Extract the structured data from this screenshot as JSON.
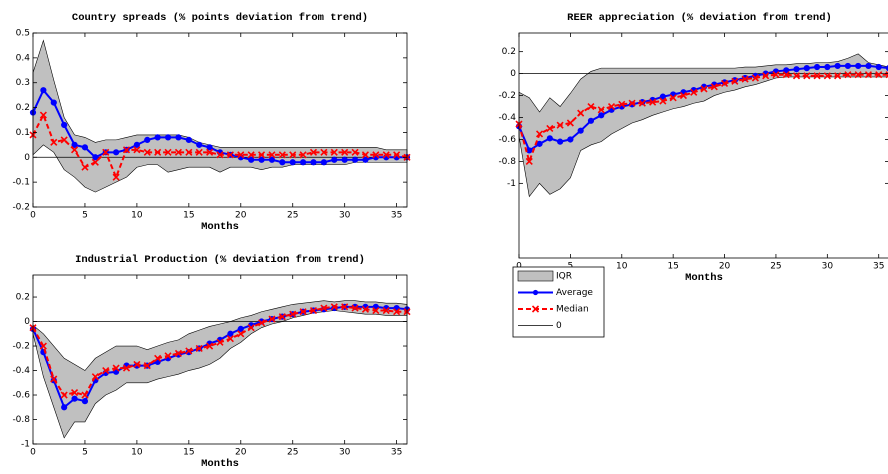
{
  "legend": {
    "entries": [
      {
        "label": "IQR",
        "color": "#c0c0c0",
        "kind": "patch"
      },
      {
        "label": "Average",
        "color": "#0000ff",
        "kind": "line",
        "marker": "circle"
      },
      {
        "label": "Median",
        "color": "#ff0000",
        "kind": "line",
        "marker": "x",
        "dash": "5,3"
      },
      {
        "label": "0",
        "color": "#000000",
        "kind": "line"
      }
    ]
  },
  "chart_data": [
    {
      "type": "line",
      "title": "Country spreads (% points deviation from trend)",
      "x_label": "Months",
      "x": [
        0,
        1,
        2,
        3,
        4,
        5,
        6,
        7,
        8,
        9,
        10,
        11,
        12,
        13,
        14,
        15,
        16,
        17,
        18,
        19,
        20,
        21,
        22,
        23,
        24,
        25,
        26,
        27,
        28,
        29,
        30,
        31,
        32,
        33,
        34,
        35,
        36
      ],
      "xlim": [
        0,
        36
      ],
      "xticks": [
        0,
        5,
        10,
        15,
        20,
        25,
        30,
        35
      ],
      "ylim": [
        -0.2,
        0.5
      ],
      "yticks": [
        -0.2,
        -0.1,
        0,
        0.1,
        0.2,
        0.3,
        0.4,
        0.5
      ],
      "hline": 0,
      "iqr_high": [
        0.34,
        0.47,
        0.31,
        0.16,
        0.09,
        0.08,
        0.06,
        0.07,
        0.07,
        0.08,
        0.09,
        0.09,
        0.09,
        0.09,
        0.09,
        0.08,
        0.06,
        0.05,
        0.04,
        0.04,
        0.04,
        0.04,
        0.04,
        0.04,
        0.04,
        0.04,
        0.04,
        0.04,
        0.04,
        0.04,
        0.04,
        0.04,
        0.04,
        0.04,
        0.03,
        0.03,
        0.03
      ],
      "iqr_low": [
        0.01,
        0.05,
        0.02,
        -0.05,
        -0.08,
        -0.12,
        -0.14,
        -0.12,
        -0.1,
        -0.08,
        -0.04,
        -0.03,
        -0.03,
        -0.06,
        -0.05,
        -0.04,
        -0.04,
        -0.04,
        -0.06,
        -0.04,
        -0.04,
        -0.04,
        -0.05,
        -0.04,
        -0.04,
        -0.03,
        -0.03,
        -0.03,
        -0.03,
        -0.03,
        -0.03,
        -0.02,
        -0.02,
        -0.02,
        -0.02,
        -0.02,
        -0.02
      ],
      "average": [
        0.18,
        0.27,
        0.22,
        0.13,
        0.05,
        0.04,
        0,
        0.02,
        0.02,
        0.03,
        0.05,
        0.07,
        0.08,
        0.08,
        0.08,
        0.07,
        0.05,
        0.04,
        0.02,
        0.01,
        0,
        -0.01,
        -0.01,
        -0.01,
        -0.02,
        -0.02,
        -0.02,
        -0.02,
        -0.02,
        -0.01,
        -0.01,
        -0.01,
        -0.01,
        0,
        0,
        0,
        0
      ],
      "median": [
        0.09,
        0.17,
        0.06,
        0.07,
        0.03,
        -0.04,
        -0.02,
        0.02,
        -0.08,
        0.03,
        0.03,
        0.02,
        0.02,
        0.02,
        0.02,
        0.02,
        0.02,
        0.02,
        0.01,
        0.01,
        0.01,
        0.01,
        0.01,
        0.01,
        0.01,
        0.01,
        0.01,
        0.02,
        0.02,
        0.02,
        0.02,
        0.02,
        0.01,
        0.01,
        0.01,
        0.01,
        0
      ]
    },
    {
      "type": "line",
      "title": "REER appreciation (% deviation from trend)",
      "x_label": "Months",
      "x": [
        0,
        1,
        2,
        3,
        4,
        5,
        6,
        7,
        8,
        9,
        10,
        11,
        12,
        13,
        14,
        15,
        16,
        17,
        18,
        19,
        20,
        21,
        22,
        23,
        24,
        25,
        26,
        27,
        28,
        29,
        30,
        31,
        32,
        33,
        34,
        35,
        36
      ],
      "xlim": [
        0,
        36
      ],
      "xticks": [
        0,
        5,
        10,
        15,
        20,
        25,
        30,
        35
      ],
      "ylim": [
        -1.68,
        0.37
      ],
      "yticks": [
        -1,
        -0.8,
        -0.6,
        -0.4,
        -0.2,
        0,
        0.2
      ],
      "hline": 0,
      "iqr_high": [
        -0.17,
        -0.22,
        -0.35,
        -0.22,
        -0.3,
        -0.18,
        -0.05,
        0.02,
        0.05,
        0.05,
        0.05,
        0.05,
        0.05,
        0.05,
        0.05,
        0.05,
        0.05,
        0.05,
        0.05,
        0.05,
        0.05,
        0.05,
        0.06,
        0.06,
        0.07,
        0.08,
        0.08,
        0.09,
        0.09,
        0.1,
        0.1,
        0.11,
        0.14,
        0.18,
        0.1,
        0.08,
        0.06
      ],
      "iqr_low": [
        -0.57,
        -1.12,
        -1,
        -1.1,
        -1.05,
        -0.95,
        -0.7,
        -0.65,
        -0.62,
        -0.55,
        -0.5,
        -0.45,
        -0.42,
        -0.38,
        -0.35,
        -0.32,
        -0.3,
        -0.27,
        -0.25,
        -0.2,
        -0.17,
        -0.15,
        -0.12,
        -0.1,
        -0.07,
        -0.04,
        -0.03,
        -0.03,
        -0.03,
        -0.03,
        -0.03,
        -0.03,
        -0.03,
        -0.03,
        -0.03,
        -0.03,
        -0.03
      ],
      "average": [
        -0.48,
        -0.7,
        -0.64,
        -0.59,
        -0.62,
        -0.6,
        -0.52,
        -0.43,
        -0.38,
        -0.33,
        -0.3,
        -0.28,
        -0.26,
        -0.24,
        -0.21,
        -0.19,
        -0.17,
        -0.15,
        -0.12,
        -0.1,
        -0.08,
        -0.06,
        -0.04,
        -0.02,
        0,
        0.02,
        0.03,
        0.04,
        0.05,
        0.06,
        0.06,
        0.07,
        0.07,
        0.07,
        0.07,
        0.06,
        0.05
      ],
      "median": [
        -0.46,
        -0.8,
        -0.55,
        -0.5,
        -0.47,
        -0.45,
        -0.36,
        -0.3,
        -0.33,
        -0.3,
        -0.28,
        -0.27,
        -0.27,
        -0.26,
        -0.25,
        -0.22,
        -0.2,
        -0.17,
        -0.14,
        -0.12,
        -0.09,
        -0.07,
        -0.05,
        -0.04,
        -0.02,
        -0.01,
        -0.01,
        -0.02,
        -0.02,
        -0.02,
        -0.02,
        -0.02,
        -0.01,
        -0.01,
        -0.01,
        -0.01,
        -0.01
      ]
    },
    {
      "type": "line",
      "title": "Industrial Production (% deviation from trend)",
      "x_label": "Months",
      "x": [
        0,
        1,
        2,
        3,
        4,
        5,
        6,
        7,
        8,
        9,
        10,
        11,
        12,
        13,
        14,
        15,
        16,
        17,
        18,
        19,
        20,
        21,
        22,
        23,
        24,
        25,
        26,
        27,
        28,
        29,
        30,
        31,
        32,
        33,
        34,
        35,
        36
      ],
      "xlim": [
        0,
        36
      ],
      "xticks": [
        0,
        5,
        10,
        15,
        20,
        25,
        30,
        35
      ],
      "ylim": [
        -1,
        0.38
      ],
      "yticks": [
        -1,
        -0.8,
        -0.6,
        -0.4,
        -0.2,
        0,
        0.2
      ],
      "hline": 0,
      "iqr_high": [
        -0.03,
        -0.1,
        -0.2,
        -0.3,
        -0.35,
        -0.4,
        -0.3,
        -0.25,
        -0.2,
        -0.2,
        -0.2,
        -0.23,
        -0.2,
        -0.17,
        -0.15,
        -0.1,
        -0.07,
        -0.04,
        -0.02,
        0,
        0.03,
        0.05,
        0.08,
        0.1,
        0.12,
        0.14,
        0.15,
        0.16,
        0.17,
        0.16,
        0.17,
        0.17,
        0.16,
        0.16,
        0.15,
        0.15,
        0.14
      ],
      "iqr_low": [
        -0.1,
        -0.45,
        -0.7,
        -0.95,
        -0.82,
        -0.82,
        -0.67,
        -0.6,
        -0.56,
        -0.5,
        -0.5,
        -0.5,
        -0.47,
        -0.45,
        -0.43,
        -0.4,
        -0.38,
        -0.35,
        -0.3,
        -0.22,
        -0.17,
        -0.1,
        -0.05,
        -0.02,
        0,
        0.03,
        0.05,
        0.07,
        0.08,
        0.09,
        0.08,
        0.07,
        0.06,
        0.06,
        0.05,
        0.05,
        0.05
      ],
      "average": [
        -0.06,
        -0.25,
        -0.48,
        -0.7,
        -0.63,
        -0.65,
        -0.48,
        -0.42,
        -0.41,
        -0.36,
        -0.36,
        -0.36,
        -0.33,
        -0.3,
        -0.27,
        -0.25,
        -0.22,
        -0.18,
        -0.15,
        -0.1,
        -0.06,
        -0.03,
        0,
        0.02,
        0.04,
        0.06,
        0.08,
        0.09,
        0.1,
        0.11,
        0.12,
        0.12,
        0.12,
        0.12,
        0.11,
        0.11,
        0.1
      ],
      "median": [
        -0.05,
        -0.2,
        -0.47,
        -0.6,
        -0.58,
        -0.6,
        -0.45,
        -0.4,
        -0.38,
        -0.38,
        -0.35,
        -0.36,
        -0.3,
        -0.28,
        -0.26,
        -0.24,
        -0.22,
        -0.2,
        -0.17,
        -0.14,
        -0.1,
        -0.05,
        -0.01,
        0.02,
        0.04,
        0.06,
        0.08,
        0.09,
        0.11,
        0.12,
        0.12,
        0.11,
        0.1,
        0.09,
        0.09,
        0.08,
        0.08
      ]
    }
  ]
}
